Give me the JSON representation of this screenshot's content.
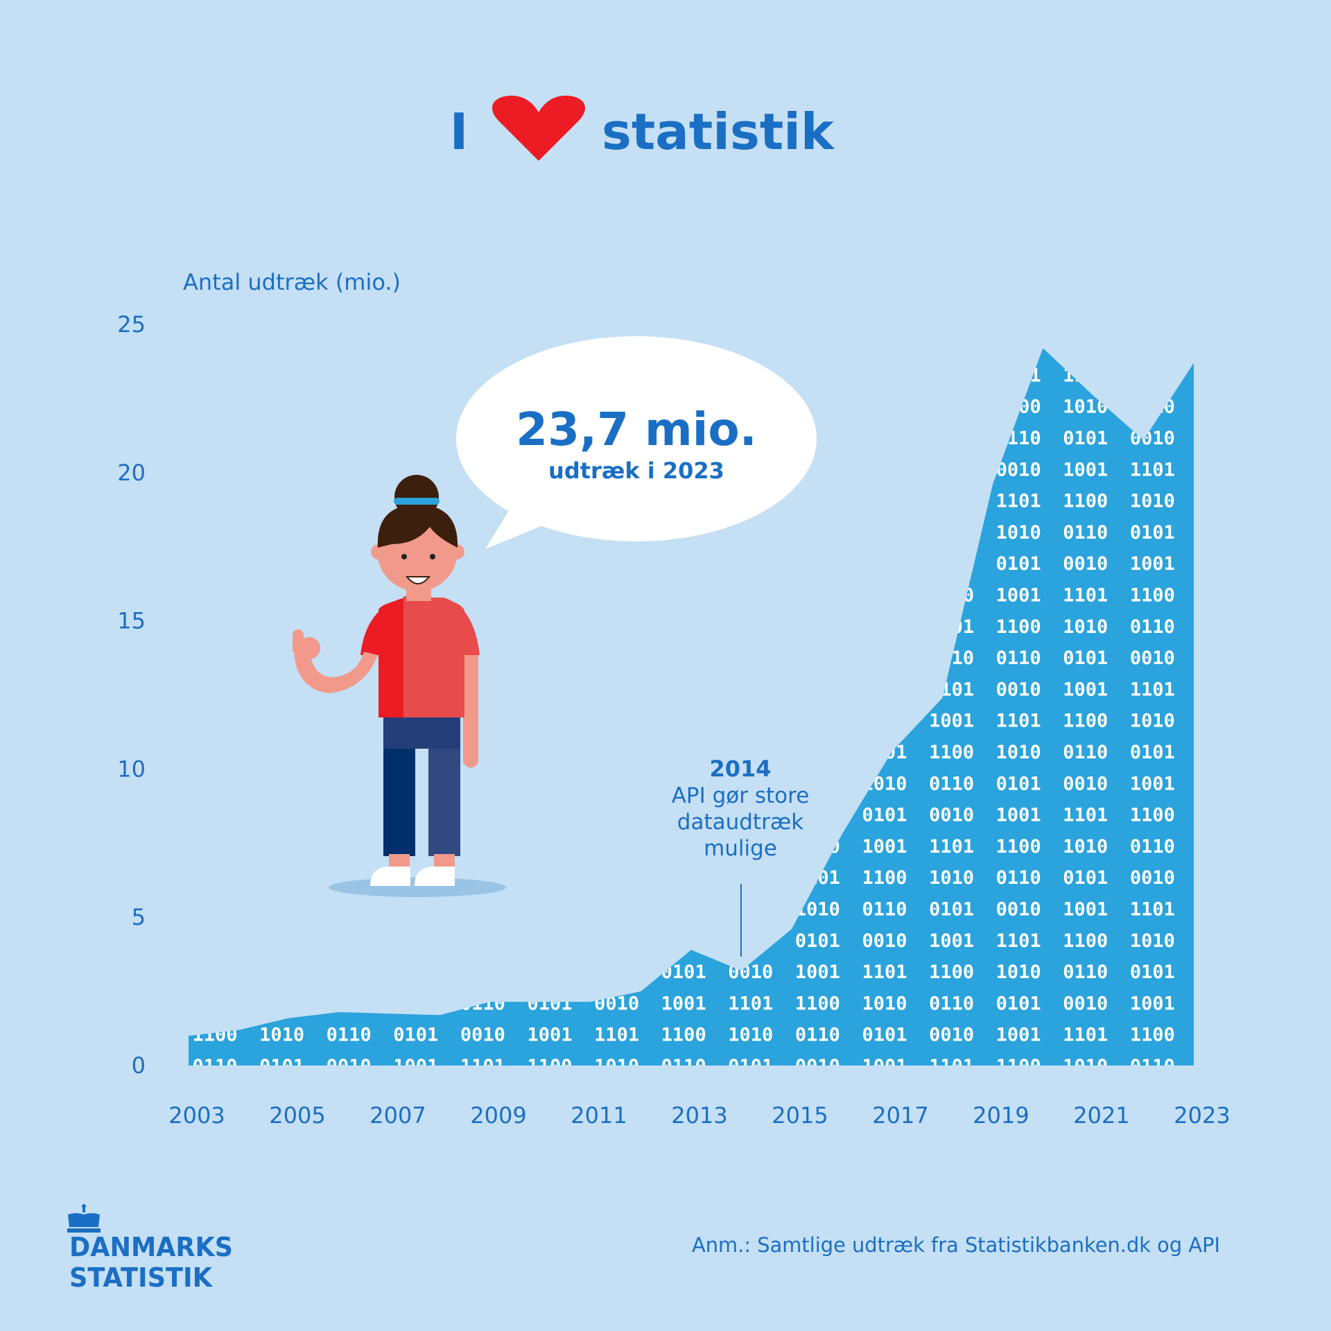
{
  "header": {
    "title_left": "I",
    "title_right": "statistik",
    "heart_icon": "heart-icon"
  },
  "colors": {
    "background": "#c5dff4",
    "area": "#2ba3dc",
    "text_blue": "#1a6fc4",
    "heart_red": "#ec1c24",
    "binary_text": "#ffffff"
  },
  "callout": {
    "value": "23,7 mio.",
    "label": "udtræk i 2023"
  },
  "annotation": {
    "year": "2014",
    "lines": [
      "API gør store",
      "dataudtræk",
      "mulige"
    ]
  },
  "footer": {
    "logo_line1": "DANMARKS",
    "logo_line2": "STATISTIK",
    "note": "Anm.: Samtlige udtræk fra Statistikbanken.dk og API"
  },
  "illustration": "woman-thumbs-up",
  "chart_data": {
    "type": "area",
    "ylabel": "Antal udtræk (mio.)",
    "xlabel": "",
    "ylim": [
      0,
      25
    ],
    "yticks": [
      0,
      5,
      10,
      15,
      20,
      25
    ],
    "xticks": [
      "2003",
      "2005",
      "2007",
      "2009",
      "2011",
      "2013",
      "2015",
      "2017",
      "2019",
      "2021",
      "2023"
    ],
    "x": [
      2003,
      2004,
      2005,
      2006,
      2007,
      2008,
      2009,
      2010,
      2011,
      2012,
      2013,
      2014,
      2015,
      2016,
      2017,
      2018,
      2019,
      2020,
      2021,
      2022,
      2023
    ],
    "values": [
      1.0,
      1.2,
      1.6,
      1.8,
      1.75,
      1.7,
      2.15,
      2.15,
      2.15,
      2.5,
      3.9,
      3.2,
      4.6,
      7.8,
      10.6,
      12.4,
      19.6,
      24.2,
      22.6,
      21.1,
      23.7
    ],
    "grid": false,
    "legend": "none",
    "fill_pattern": "binary-digits"
  }
}
